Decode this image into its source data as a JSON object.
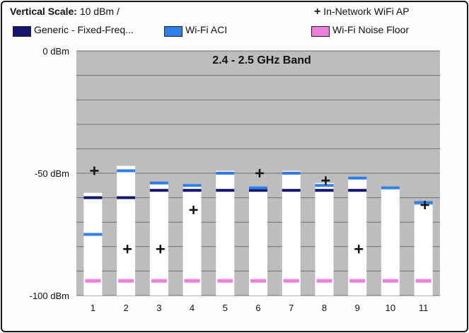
{
  "header": {
    "scale_label": "Vertical Scale:",
    "scale_value": "10 dBm /",
    "plus_symbol": "+",
    "in_network_label": "In-Network WiFi AP"
  },
  "legend": [
    {
      "name": "Generic - Fixed-Freq...",
      "color": "#14146e"
    },
    {
      "name": "Wi-Fi ACI",
      "color": "#2f7fe8"
    },
    {
      "name": "Wi-Fi Noise Floor",
      "color": "#ef7fdc"
    }
  ],
  "chart_data": {
    "type": "bar",
    "title": "2.4 - 2.5 GHz Band",
    "categories": [
      "1",
      "2",
      "3",
      "4",
      "5",
      "6",
      "7",
      "8",
      "9",
      "10",
      "11"
    ],
    "yticks": [
      {
        "value": 0,
        "label": "0 dBm"
      },
      {
        "value": -50,
        "label": "-50 dBm"
      },
      {
        "value": -100,
        "label": "-100 dBm"
      }
    ],
    "ylim": [
      -100,
      0
    ],
    "bar_top": [
      -58,
      -47,
      -54,
      -55,
      -49,
      -56,
      -49,
      -54,
      -52,
      -56,
      -63
    ],
    "series": [
      {
        "name": "Generic - Fixed-Freq...",
        "color": "#14146e",
        "values": [
          -60,
          -60,
          -57,
          -57,
          -57,
          -57,
          -57,
          -57,
          -57,
          null,
          null
        ]
      },
      {
        "name": "Wi-Fi ACI",
        "color": "#2f7fe8",
        "values": [
          -75,
          -49,
          -54,
          -55,
          -50,
          -56,
          -50,
          -55,
          -52,
          -56,
          -62
        ]
      },
      {
        "name": "Wi-Fi Noise Floor",
        "color": "#ef7fdc",
        "values": [
          -94,
          -94,
          -94,
          -94,
          -94,
          -94,
          -94,
          -94,
          -94,
          -94,
          -94
        ]
      },
      {
        "name": "In-Network WiFi AP",
        "marker": "+",
        "values": [
          -49,
          -81,
          -81,
          -65,
          null,
          -50,
          null,
          -53,
          -81,
          null,
          -63
        ]
      }
    ],
    "grid": true,
    "gridlines": [
      0,
      -10,
      -20,
      -30,
      -40,
      -50,
      -60,
      -70,
      -80,
      -90,
      -100
    ],
    "colors": {
      "plot_bg": "#bdbdbd",
      "bar": "#ffffff",
      "grid": "#707070"
    }
  }
}
